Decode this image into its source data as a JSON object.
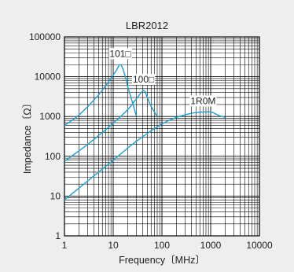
{
  "chart_data": {
    "type": "line",
    "title": "LBR2012",
    "xlabel": "Frequency〔MHz〕",
    "ylabel": "Impedance〔Ω〕",
    "x_scale": "log",
    "y_scale": "log",
    "xlim": [
      1,
      10000
    ],
    "ylim": [
      1,
      100000
    ],
    "x_ticks": [
      "1",
      "10",
      "100",
      "1000",
      "10000"
    ],
    "y_ticks": [
      "1",
      "10",
      "100",
      "1000",
      "10000",
      "100000"
    ],
    "grid": true,
    "plot_background": "#ffffff",
    "line_color": "#1a9fd4",
    "series": [
      {
        "name": "101□",
        "points": [
          [
            1,
            600
          ],
          [
            2,
            1100
          ],
          [
            5,
            3500
          ],
          [
            8,
            7500
          ],
          [
            11,
            13000
          ],
          [
            14,
            20000
          ],
          [
            17,
            12000
          ],
          [
            20,
            5500
          ],
          [
            25,
            2200
          ],
          [
            30,
            1000
          ]
        ]
      },
      {
        "name": "100□",
        "points": [
          [
            1,
            75
          ],
          [
            3,
            200
          ],
          [
            10,
            680
          ],
          [
            20,
            1500
          ],
          [
            30,
            2800
          ],
          [
            42,
            4500
          ],
          [
            50,
            3000
          ],
          [
            60,
            1800
          ],
          [
            80,
            1000
          ]
        ]
      },
      {
        "name": "1R0M",
        "points": [
          [
            1,
            8
          ],
          [
            3,
            24
          ],
          [
            10,
            80
          ],
          [
            30,
            240
          ],
          [
            100,
            650
          ],
          [
            200,
            950
          ],
          [
            400,
            1200
          ],
          [
            700,
            1300
          ],
          [
            1000,
            1300
          ],
          [
            1200,
            1200
          ],
          [
            1500,
            1050
          ],
          [
            2000,
            950
          ]
        ]
      }
    ]
  }
}
